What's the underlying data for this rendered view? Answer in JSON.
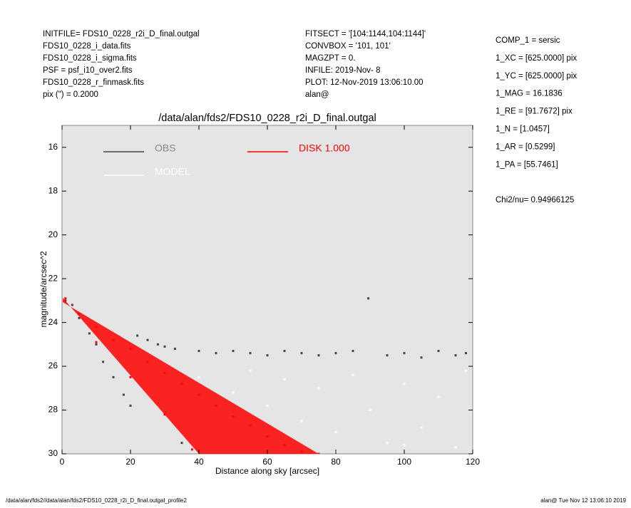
{
  "header_left": [
    "INITFILE= FDS10_0228_r2i_D_final.outgal",
    "FDS10_0228_i_data.fits",
    "FDS10_0228_i_sigma.fits",
    "PSF     = psf_i10_over2.fits",
    "FDS10_0228_r_finmask.fits",
    "pix (\") =  0.2000"
  ],
  "header_middle": [
    "FITSECT = '[104:1144,104:1144]'",
    "CONVBOX = '101, 101'",
    "MAGZPT  =                0.",
    "INFILE: 2019-Nov- 8",
    "PLOT: 12-Nov-2019 13:06:10.00",
    "alan@"
  ],
  "parameters": [
    "COMP_1  = sersic",
    "1_XC    = [625.0000] pix",
    "1_YC    = [625.0000] pix",
    "1_MAG   = 16.1836",
    "1_RE    = [91.7672] pix",
    "1_N     = [1.0457]",
    "1_AR    = [0.5299]",
    "1_PA    = [55.7461]"
  ],
  "chi2": "Chi2/nu=     0.94966125",
  "footer_left": "/data/alan/fds2//data/alan/fds2/FDS10_0228_r2i_D_final.outgal_profile2",
  "footer_right": "alan@  Tue Nov 12 13:06:10 2019",
  "chart_data": {
    "type": "scatter",
    "title": "/data/alan/fds2/FDS10_0228_r2i_D_final.outgal",
    "x_label": "Distance along sky [arcsec]",
    "y_label": "magnitude/arcsec^2",
    "xlim": [
      0,
      120
    ],
    "xticks": [
      0,
      20,
      40,
      60,
      80,
      100,
      120
    ],
    "ylim": [
      15,
      30
    ],
    "yticks": [
      16,
      18,
      20,
      22,
      24,
      26,
      28,
      30
    ],
    "y_inverted": true,
    "series": [
      {
        "name": "OBS",
        "color": "#444444",
        "x": [
          1,
          3,
          5,
          8,
          10,
          12,
          15,
          18,
          20,
          22,
          25,
          28,
          30,
          33,
          35,
          40,
          45,
          50,
          55,
          60,
          65,
          70,
          75,
          80,
          85,
          89.5,
          95,
          100,
          105,
          110,
          115,
          118
        ],
        "values": [
          23.0,
          23.2,
          23.8,
          24.5,
          25.0,
          25.8,
          26.5,
          27.3,
          27.8,
          24.6,
          24.8,
          25.0,
          25.1,
          25.2,
          29.5,
          25.3,
          25.4,
          25.3,
          25.4,
          25.5,
          25.3,
          25.4,
          25.5,
          25.4,
          25.3,
          22.9,
          25.5,
          25.4,
          25.6,
          25.3,
          25.5,
          25.4
        ]
      },
      {
        "name": "MODEL",
        "color": "#ffffff",
        "x": [
          30,
          40,
          50,
          55,
          60,
          65,
          70,
          75,
          80,
          85,
          90,
          95,
          100,
          105,
          110,
          115,
          118,
          45,
          60,
          80,
          100
        ],
        "values": [
          26.0,
          26.5,
          27.2,
          26.2,
          27.8,
          26.6,
          28.5,
          27.0,
          29.0,
          26.4,
          28.0,
          29.5,
          26.8,
          28.8,
          27.4,
          29.7,
          26.2,
          28.8,
          29.8,
          29.9,
          29.6
        ]
      },
      {
        "name": "DISK  1.000",
        "color": "#ff0000",
        "x": [
          1,
          5,
          10,
          15,
          20,
          25,
          30,
          35,
          40,
          45,
          50,
          55,
          60,
          65,
          70,
          75,
          10,
          20,
          30,
          38
        ],
        "values": [
          22.9,
          23.6,
          24.2,
          24.8,
          25.2,
          25.8,
          26.3,
          26.8,
          27.3,
          27.8,
          28.3,
          28.7,
          29.2,
          29.6,
          29.9,
          30.0,
          24.9,
          26.5,
          28.2,
          29.8
        ]
      }
    ]
  }
}
